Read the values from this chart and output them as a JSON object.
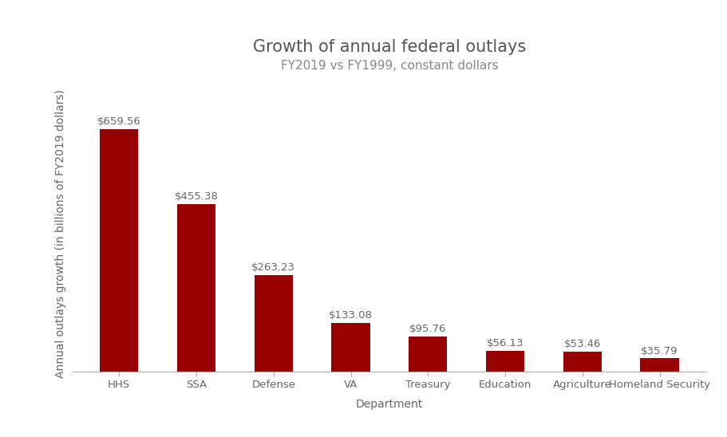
{
  "title": "Growth of annual federal outlays",
  "subtitle": "FY2019 vs FY1999, constant dollars",
  "xlabel": "Department",
  "ylabel": "Annual outlays growth (in billions of FY2019 dollars)",
  "categories": [
    "HHS",
    "SSA",
    "Defense",
    "VA",
    "Treasury",
    "Education",
    "Agriculture",
    "Homeland Security"
  ],
  "values": [
    659.56,
    455.38,
    263.23,
    133.08,
    95.76,
    56.13,
    53.46,
    35.79
  ],
  "bar_color": "#990000",
  "background_color": "#ffffff",
  "title_fontsize": 15,
  "subtitle_fontsize": 11,
  "label_fontsize": 10,
  "tick_fontsize": 9.5,
  "value_label_fontsize": 9.5,
  "ylim": [
    0,
    750
  ],
  "title_color": "#555555",
  "subtitle_color": "#888888",
  "axis_color": "#aaaaaa",
  "text_color": "#666666"
}
